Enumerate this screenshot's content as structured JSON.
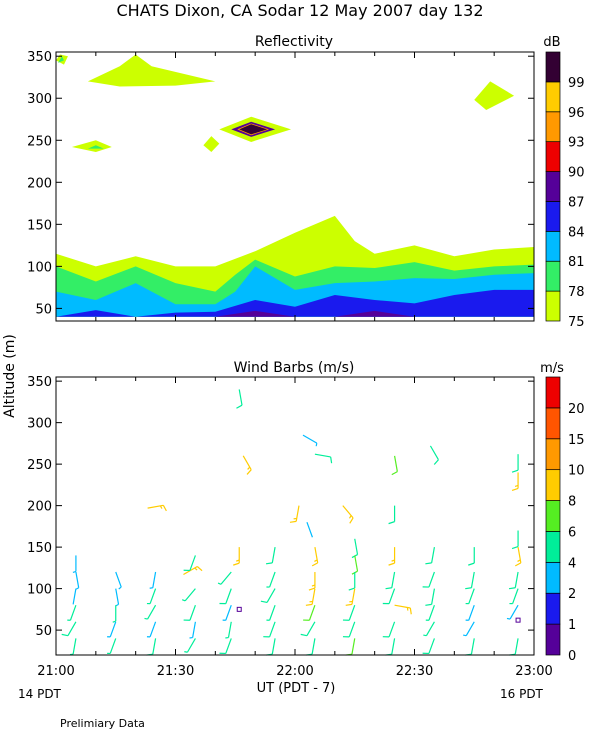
{
  "title": "CHATS Dixon, CA  Sodar  12 May 2007  day 132",
  "ylabel": "Altitude (m)",
  "xlabel": "UT  (PDT - 7)",
  "left_note": "14 PDT",
  "right_note": "16 PDT",
  "footer": "Prelimiary Data",
  "chart_data": [
    {
      "type": "heatmap",
      "title": "Reflectivity",
      "x_ticks": [
        "21:00",
        "21:30",
        "22:00",
        "22:30",
        "23:00"
      ],
      "x_range_minutes_after_21UT": [
        0,
        120
      ],
      "ylim": [
        35,
        355
      ],
      "y_ticks": [
        50,
        100,
        150,
        200,
        250,
        300,
        350
      ],
      "colorbar": {
        "unit": "dB",
        "levels": [
          75,
          78,
          81,
          84,
          87,
          90,
          93,
          96,
          99
        ],
        "colors": [
          "#ccff00",
          "#33ee66",
          "#00bbff",
          "#1a1aee",
          "#550099",
          "#ee0000",
          "#ff9900",
          "#ffcc00",
          "#330033"
        ]
      },
      "contours": [
        {
          "level": 75,
          "x": [
            0,
            10,
            20,
            30,
            40,
            50,
            60,
            70,
            75,
            80,
            90,
            100,
            110,
            120
          ],
          "y_bottom": [
            40,
            40,
            40,
            40,
            40,
            40,
            40,
            40,
            40,
            40,
            40,
            40,
            40,
            40
          ],
          "y_top": [
            115,
            100,
            112,
            100,
            100,
            118,
            140,
            160,
            130,
            115,
            125,
            112,
            120,
            123
          ]
        },
        {
          "level": 78,
          "x": [
            0,
            10,
            20,
            30,
            40,
            45,
            50,
            60,
            70,
            80,
            90,
            100,
            110,
            120
          ],
          "y_bottom": [
            40,
            40,
            40,
            40,
            40,
            40,
            40,
            40,
            40,
            40,
            40,
            40,
            40,
            40
          ],
          "y_top": [
            100,
            82,
            100,
            80,
            70,
            90,
            108,
            88,
            100,
            98,
            105,
            95,
            100,
            102
          ]
        },
        {
          "level": 81,
          "x": [
            0,
            10,
            20,
            30,
            40,
            45,
            50,
            60,
            70,
            80,
            90,
            100,
            110,
            120
          ],
          "y_bottom": [
            40,
            40,
            40,
            40,
            40,
            40,
            40,
            40,
            40,
            40,
            40,
            40,
            40,
            40
          ],
          "y_top": [
            70,
            60,
            80,
            55,
            55,
            70,
            100,
            72,
            80,
            82,
            86,
            85,
            90,
            92
          ]
        },
        {
          "level": 84,
          "x": [
            0,
            10,
            20,
            30,
            40,
            50,
            60,
            70,
            80,
            90,
            100,
            110,
            120
          ],
          "y_bottom": [
            40,
            40,
            40,
            40,
            40,
            40,
            40,
            40,
            40,
            40,
            40,
            40,
            40
          ],
          "y_top": [
            40,
            48,
            40,
            45,
            46,
            60,
            52,
            66,
            60,
            56,
            66,
            72,
            72
          ]
        },
        {
          "level": 87,
          "x": [
            40,
            50,
            60,
            70,
            80,
            90,
            100
          ],
          "y_bottom": [
            40,
            40,
            40,
            40,
            40,
            40,
            40
          ],
          "y_top": [
            40,
            47,
            40,
            40,
            47,
            40,
            40
          ]
        }
      ],
      "patches": [
        {
          "level": 75,
          "x": [
            0,
            1,
            3,
            2
          ],
          "y": [
            345,
            352,
            350,
            340
          ]
        },
        {
          "level": 78,
          "x": [
            0.5,
            1.5,
            2
          ],
          "y": [
            342,
            350,
            345
          ]
        },
        {
          "level": 75,
          "x": [
            8,
            16,
            20,
            24,
            40,
            30,
            16
          ],
          "y": [
            320,
            338,
            352,
            338,
            320,
            315,
            314
          ]
        },
        {
          "level": 75,
          "x": [
            4,
            10,
            14,
            10,
            4
          ],
          "y": [
            242,
            250,
            242,
            236,
            242
          ]
        },
        {
          "level": 78,
          "x": [
            8,
            10,
            12
          ],
          "y": [
            240,
            244,
            240
          ]
        },
        {
          "level": 75,
          "x": [
            37,
            39,
            41,
            39
          ],
          "y": [
            244,
            255,
            246,
            236
          ]
        },
        {
          "level": 75,
          "x": [
            41,
            49,
            59,
            49
          ],
          "y": [
            263,
            278,
            263,
            248
          ]
        },
        {
          "level": 87,
          "x": [
            44,
            49,
            55,
            49
          ],
          "y": [
            263,
            272,
            263,
            254
          ]
        },
        {
          "level": 93,
          "x": [
            45.5,
            49,
            53.5,
            49
          ],
          "y": [
            263,
            270,
            263,
            256
          ]
        },
        {
          "level": 99,
          "x": [
            46,
            49,
            53,
            49
          ],
          "y": [
            263,
            269,
            263,
            257
          ]
        },
        {
          "level": 75,
          "x": [
            105,
            109,
            115,
            108
          ],
          "y": [
            298,
            320,
            303,
            286
          ]
        }
      ]
    },
    {
      "type": "scatter",
      "title": "Wind Barbs (m/s)",
      "x_ticks": [
        "21:00",
        "21:30",
        "22:00",
        "22:30",
        "23:00"
      ],
      "x_range_minutes_after_21UT": [
        0,
        120
      ],
      "ylim": [
        20,
        355
      ],
      "y_ticks": [
        50,
        100,
        150,
        200,
        250,
        300,
        350
      ],
      "colorbar": {
        "unit": "m/s",
        "levels": [
          0,
          1,
          2,
          4,
          6,
          8,
          10,
          15,
          20
        ],
        "colors": [
          "#550099",
          "#1a1aee",
          "#00bbff",
          "#00ee99",
          "#55ee22",
          "#ffcc00",
          "#ff9900",
          "#ff5500",
          "#ee0000"
        ]
      },
      "barbs": [
        {
          "x": 5,
          "y": 140,
          "dir": 180,
          "speed": 3
        },
        {
          "x": 5,
          "y": 120,
          "dir": 170,
          "speed": 3
        },
        {
          "x": 5,
          "y": 100,
          "dir": 190,
          "speed": 2
        },
        {
          "x": 5,
          "y": 80,
          "dir": 200,
          "speed": 4
        },
        {
          "x": 5,
          "y": 60,
          "dir": 210,
          "speed": 5
        },
        {
          "x": 5,
          "y": 40,
          "dir": 190,
          "speed": 4
        },
        {
          "x": 15,
          "y": 120,
          "dir": 160,
          "speed": 3
        },
        {
          "x": 15,
          "y": 100,
          "dir": 170,
          "speed": 3
        },
        {
          "x": 15,
          "y": 80,
          "dir": 180,
          "speed": 4
        },
        {
          "x": 15,
          "y": 60,
          "dir": 200,
          "speed": 3
        },
        {
          "x": 15,
          "y": 40,
          "dir": 200,
          "speed": 4
        },
        {
          "x": 23,
          "y": 197,
          "dir": 80,
          "speed": 9
        },
        {
          "x": 25,
          "y": 120,
          "dir": 190,
          "speed": 3
        },
        {
          "x": 25,
          "y": 100,
          "dir": 200,
          "speed": 4
        },
        {
          "x": 25,
          "y": 80,
          "dir": 210,
          "speed": 4
        },
        {
          "x": 25,
          "y": 60,
          "dir": 200,
          "speed": 3
        },
        {
          "x": 25,
          "y": 40,
          "dir": 190,
          "speed": 5
        },
        {
          "x": 32,
          "y": 117,
          "dir": 60,
          "speed": 9
        },
        {
          "x": 35,
          "y": 140,
          "dir": 200,
          "speed": 5
        },
        {
          "x": 35,
          "y": 100,
          "dir": 220,
          "speed": 4
        },
        {
          "x": 35,
          "y": 80,
          "dir": 200,
          "speed": 5
        },
        {
          "x": 35,
          "y": 60,
          "dir": 190,
          "speed": 3
        },
        {
          "x": 35,
          "y": 40,
          "dir": 210,
          "speed": 4
        },
        {
          "x": 44,
          "y": 120,
          "dir": 220,
          "speed": 4
        },
        {
          "x": 44,
          "y": 100,
          "dir": 200,
          "speed": 5
        },
        {
          "x": 44,
          "y": 80,
          "dir": 200,
          "speed": 3
        },
        {
          "x": 44,
          "y": 60,
          "dir": 190,
          "speed": 4
        },
        {
          "x": 44,
          "y": 40,
          "dir": 200,
          "speed": 5
        },
        {
          "x": 46,
          "y": 340,
          "dir": 170,
          "speed": 5
        },
        {
          "x": 47,
          "y": 260,
          "dir": 150,
          "speed": 8
        },
        {
          "x": 46,
          "y": 150,
          "dir": 180,
          "speed": 8
        },
        {
          "x": 46,
          "y": 75,
          "dir": 175,
          "speed": 0
        },
        {
          "x": 55,
          "y": 150,
          "dir": 190,
          "speed": 5
        },
        {
          "x": 55,
          "y": 120,
          "dir": 200,
          "speed": 4
        },
        {
          "x": 55,
          "y": 100,
          "dir": 210,
          "speed": 5
        },
        {
          "x": 55,
          "y": 80,
          "dir": 200,
          "speed": 4
        },
        {
          "x": 55,
          "y": 60,
          "dir": 200,
          "speed": 5
        },
        {
          "x": 55,
          "y": 40,
          "dir": 190,
          "speed": 5
        },
        {
          "x": 62,
          "y": 285,
          "dir": 120,
          "speed": 3
        },
        {
          "x": 65,
          "y": 262,
          "dir": 100,
          "speed": 5
        },
        {
          "x": 61,
          "y": 200,
          "dir": 190,
          "speed": 9
        },
        {
          "x": 63,
          "y": 180,
          "dir": 160,
          "speed": 2
        },
        {
          "x": 65,
          "y": 150,
          "dir": 170,
          "speed": 9
        },
        {
          "x": 65,
          "y": 120,
          "dir": 180,
          "speed": 9
        },
        {
          "x": 65,
          "y": 100,
          "dir": 190,
          "speed": 8
        },
        {
          "x": 65,
          "y": 80,
          "dir": 200,
          "speed": 7
        },
        {
          "x": 65,
          "y": 60,
          "dir": 210,
          "speed": 5
        },
        {
          "x": 65,
          "y": 40,
          "dir": 190,
          "speed": 5
        },
        {
          "x": 72,
          "y": 200,
          "dir": 140,
          "speed": 9
        },
        {
          "x": 75,
          "y": 160,
          "dir": 170,
          "speed": 5
        },
        {
          "x": 75,
          "y": 140,
          "dir": 170,
          "speed": 6
        },
        {
          "x": 75,
          "y": 120,
          "dir": 180,
          "speed": 5
        },
        {
          "x": 75,
          "y": 100,
          "dir": 190,
          "speed": 8
        },
        {
          "x": 75,
          "y": 80,
          "dir": 200,
          "speed": 5
        },
        {
          "x": 75,
          "y": 60,
          "dir": 200,
          "speed": 5
        },
        {
          "x": 75,
          "y": 40,
          "dir": 190,
          "speed": 6
        },
        {
          "x": 85,
          "y": 260,
          "dir": 170,
          "speed": 6
        },
        {
          "x": 85,
          "y": 200,
          "dir": 180,
          "speed": 5
        },
        {
          "x": 85,
          "y": 150,
          "dir": 180,
          "speed": 8
        },
        {
          "x": 85,
          "y": 120,
          "dir": 190,
          "speed": 5
        },
        {
          "x": 85,
          "y": 100,
          "dir": 200,
          "speed": 5
        },
        {
          "x": 85,
          "y": 80,
          "dir": 100,
          "speed": 9
        },
        {
          "x": 85,
          "y": 60,
          "dir": 200,
          "speed": 5
        },
        {
          "x": 85,
          "y": 40,
          "dir": 190,
          "speed": 5
        },
        {
          "x": 94,
          "y": 272,
          "dir": 150,
          "speed": 5
        },
        {
          "x": 95,
          "y": 150,
          "dir": 190,
          "speed": 5
        },
        {
          "x": 95,
          "y": 120,
          "dir": 200,
          "speed": 5
        },
        {
          "x": 95,
          "y": 100,
          "dir": 190,
          "speed": 5
        },
        {
          "x": 95,
          "y": 80,
          "dir": 200,
          "speed": 4
        },
        {
          "x": 95,
          "y": 60,
          "dir": 210,
          "speed": 4
        },
        {
          "x": 95,
          "y": 40,
          "dir": 200,
          "speed": 5
        },
        {
          "x": 105,
          "y": 150,
          "dir": 180,
          "speed": 5
        },
        {
          "x": 105,
          "y": 120,
          "dir": 190,
          "speed": 5
        },
        {
          "x": 105,
          "y": 100,
          "dir": 200,
          "speed": 4
        },
        {
          "x": 105,
          "y": 80,
          "dir": 200,
          "speed": 3
        },
        {
          "x": 105,
          "y": 60,
          "dir": 210,
          "speed": 3
        },
        {
          "x": 105,
          "y": 40,
          "dir": 190,
          "speed": 5
        },
        {
          "x": 116,
          "y": 262,
          "dir": 180,
          "speed": 5
        },
        {
          "x": 116,
          "y": 240,
          "dir": 180,
          "speed": 9
        },
        {
          "x": 116,
          "y": 170,
          "dir": 180,
          "speed": 5
        },
        {
          "x": 116,
          "y": 150,
          "dir": 170,
          "speed": 8
        },
        {
          "x": 116,
          "y": 120,
          "dir": 190,
          "speed": 5
        },
        {
          "x": 116,
          "y": 100,
          "dir": 200,
          "speed": 4
        },
        {
          "x": 116,
          "y": 80,
          "dir": 210,
          "speed": 3
        },
        {
          "x": 116,
          "y": 62,
          "dir": 180,
          "speed": 0
        },
        {
          "x": 116,
          "y": 40,
          "dir": 190,
          "speed": 5
        }
      ]
    }
  ]
}
